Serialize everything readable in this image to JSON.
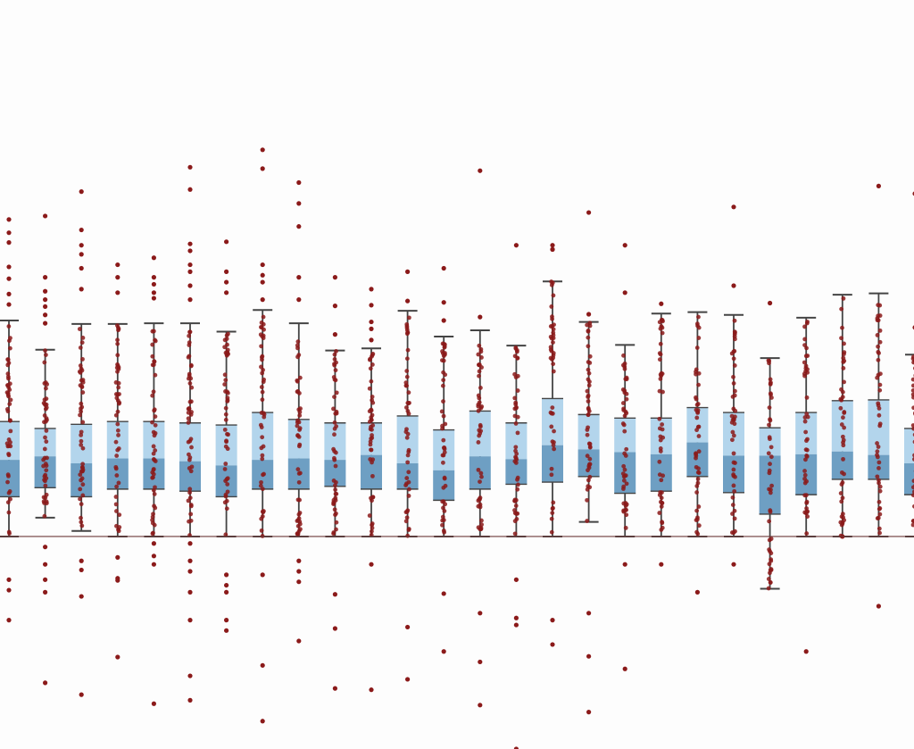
{
  "chart_data": {
    "type": "box",
    "title": "",
    "xlabel": "",
    "ylabel": "",
    "ylim": [
      -305,
      770
    ],
    "reference_line": 0,
    "grid": false,
    "legend": "none",
    "colors": {
      "box_upper": "#b3d5ec",
      "box_lower": "#6e9fc3",
      "whisker": "#444444",
      "points": "#8b1a1a",
      "reference_line": "#6e3a3a",
      "background": "#fdfdfd"
    },
    "series": [
      {
        "q1": 57,
        "median": 110,
        "q3": 165,
        "whisker_low": 0,
        "whisker_high": 310,
        "outliers": [
          333,
          348,
          370,
          387,
          422,
          436,
          455,
          -62,
          -77,
          -120
        ]
      },
      {
        "q1": 70,
        "median": 115,
        "q3": 155,
        "whisker_low": 27,
        "whisker_high": 268,
        "outliers": [
          306,
          318,
          330,
          340,
          352,
          372,
          460,
          -15,
          -40,
          -62,
          -80,
          -210
        ]
      },
      {
        "q1": 57,
        "median": 105,
        "q3": 161,
        "whisker_low": 8,
        "whisker_high": 305,
        "outliers": [
          355,
          385,
          405,
          418,
          440,
          495,
          -35,
          -48,
          -86,
          -227
        ]
      },
      {
        "q1": 68,
        "median": 112,
        "q3": 165,
        "whisker_low": 0,
        "whisker_high": 305,
        "outliers": [
          350,
          372,
          390,
          -30,
          -63,
          -60,
          -173
        ]
      },
      {
        "q1": 68,
        "median": 112,
        "q3": 165,
        "whisker_low": 0,
        "whisker_high": 306,
        "outliers": [
          342,
          350,
          362,
          372,
          400,
          -10,
          -28,
          -40,
          -240
        ]
      },
      {
        "q1": 65,
        "median": 108,
        "q3": 163,
        "whisker_low": 0,
        "whisker_high": 306,
        "outliers": [
          340,
          360,
          380,
          390,
          410,
          420,
          498,
          530,
          -10,
          -35,
          -50,
          -80,
          -120,
          -200,
          -235
        ]
      },
      {
        "q1": 57,
        "median": 102,
        "q3": 160,
        "whisker_low": 0,
        "whisker_high": 294,
        "outliers": [
          350,
          365,
          380,
          423,
          -55,
          -70,
          -80,
          -120,
          -135
        ]
      },
      {
        "q1": 68,
        "median": 110,
        "q3": 178,
        "whisker_low": 0,
        "whisker_high": 325,
        "outliers": [
          340,
          365,
          375,
          390,
          528,
          555,
          -55,
          -185,
          -265
        ]
      },
      {
        "q1": 68,
        "median": 112,
        "q3": 168,
        "whisker_low": 0,
        "whisker_high": 306,
        "outliers": [
          340,
          372,
          445,
          478,
          508,
          -35,
          -50,
          -65,
          -150
        ]
      },
      {
        "q1": 72,
        "median": 110,
        "q3": 163,
        "whisker_low": 0,
        "whisker_high": 267,
        "outliers": [
          290,
          331,
          372,
          -83,
          -132,
          -218
        ]
      },
      {
        "q1": 68,
        "median": 117,
        "q3": 163,
        "whisker_low": 0,
        "whisker_high": 270,
        "outliers": [
          282,
          298,
          308,
          332,
          355,
          -40,
          -220
        ]
      },
      {
        "q1": 68,
        "median": 105,
        "q3": 173,
        "whisker_low": 0,
        "whisker_high": 324,
        "outliers": [
          338,
          380,
          -130,
          -205
        ]
      },
      {
        "q1": 52,
        "median": 95,
        "q3": 153,
        "whisker_low": 0,
        "whisker_high": 287,
        "outliers": [
          310,
          336,
          385,
          -82,
          -165
        ]
      },
      {
        "q1": 68,
        "median": 115,
        "q3": 180,
        "whisker_low": 0,
        "whisker_high": 296,
        "outliers": [
          315,
          525,
          -110,
          -180,
          -242
        ]
      },
      {
        "q1": 75,
        "median": 111,
        "q3": 163,
        "whisker_low": 0,
        "whisker_high": 274,
        "outliers": [
          418,
          -62,
          -117,
          -127,
          -305
        ]
      },
      {
        "q1": 78,
        "median": 131,
        "q3": 198,
        "whisker_low": 0,
        "whisker_high": 366,
        "outliers": [
          412,
          418,
          412,
          -120,
          -155
        ]
      },
      {
        "q1": 86,
        "median": 125,
        "q3": 175,
        "whisker_low": 21,
        "whisker_high": 308,
        "outliers": [
          319,
          465,
          -110,
          -172,
          -252
        ]
      },
      {
        "q1": 62,
        "median": 121,
        "q3": 170,
        "whisker_low": 0,
        "whisker_high": 275,
        "outliers": [
          350,
          418,
          -40,
          -190
        ]
      },
      {
        "q1": 65,
        "median": 118,
        "q3": 170,
        "whisker_low": 0,
        "whisker_high": 320,
        "outliers": [
          334,
          -40
        ]
      },
      {
        "q1": 86,
        "median": 135,
        "q3": 185,
        "whisker_low": 0,
        "whisker_high": 322,
        "outliers": [
          -80
        ]
      },
      {
        "q1": 63,
        "median": 116,
        "q3": 178,
        "whisker_low": 0,
        "whisker_high": 318,
        "outliers": [
          360,
          473,
          -40
        ]
      },
      {
        "q1": 32,
        "median": 116,
        "q3": 156,
        "whisker_low": -75,
        "whisker_high": 256,
        "outliers": [
          335
        ]
      },
      {
        "q1": 60,
        "median": 118,
        "q3": 178,
        "whisker_low": 0,
        "whisker_high": 314,
        "outliers": [
          -165
        ]
      },
      {
        "q1": 82,
        "median": 122,
        "q3": 195,
        "whisker_low": 0,
        "whisker_high": 347,
        "outliers": [
          0
        ]
      },
      {
        "q1": 82,
        "median": 117,
        "q3": 196,
        "whisker_low": 0,
        "whisker_high": 349,
        "outliers": [
          503,
          -100
        ]
      },
      {
        "q1": 60,
        "median": 105,
        "q3": 155,
        "whisker_low": 0,
        "whisker_high": 261,
        "outliers": [
          300,
          492
        ]
      }
    ]
  }
}
